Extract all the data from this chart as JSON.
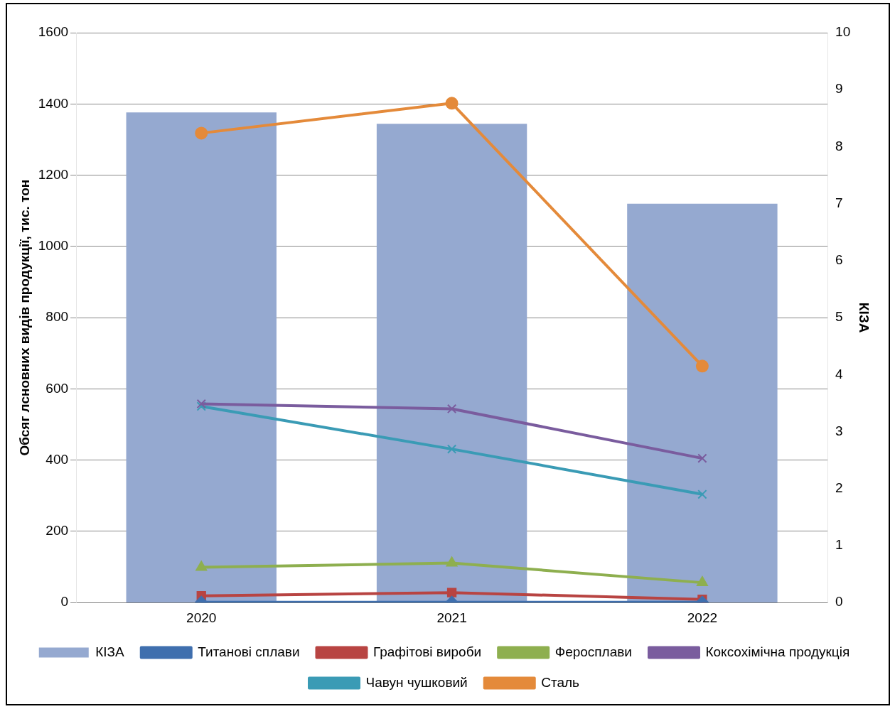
{
  "chart_data": {
    "type": "line",
    "categories": [
      "2020",
      "2021",
      "2022"
    ],
    "ylabel": "Обсяг лсновних видів продукції, тис. тон",
    "y2label": "КІЗА",
    "ylim": [
      0,
      1600
    ],
    "yticks": [
      0,
      200,
      400,
      600,
      800,
      1000,
      1200,
      1400,
      1600
    ],
    "y2lim": [
      0,
      10
    ],
    "y2ticks": [
      0,
      1,
      2,
      3,
      4,
      5,
      6,
      7,
      8,
      9,
      10
    ],
    "grid": "y",
    "legend": "bottom",
    "series": [
      {
        "name": "КІЗА",
        "type": "bar",
        "axis": "y2",
        "color": "#95a9d0",
        "values": [
          8.6,
          8.4,
          7.0
        ]
      },
      {
        "name": "Титанові сплави",
        "marker": "diamond",
        "color": "#3f6fae",
        "values": [
          1,
          1,
          1
        ]
      },
      {
        "name": "Графітові вироби",
        "marker": "square",
        "color": "#b84442",
        "values": [
          19,
          28,
          9
        ]
      },
      {
        "name": "Феросплави",
        "marker": "triangle",
        "color": "#8eaf4f",
        "values": [
          99,
          111,
          56
        ]
      },
      {
        "name": "Коксохімічна продукція",
        "marker": "cross",
        "color": "#7a5c9e",
        "values": [
          558,
          544,
          405
        ]
      },
      {
        "name": "Чавун чушковий",
        "marker": "cross",
        "color": "#3a9bb5",
        "values": [
          551,
          431,
          304
        ]
      },
      {
        "name": "Сталь",
        "marker": "circle",
        "color": "#e48a3a",
        "values": [
          1318,
          1402,
          664
        ]
      }
    ]
  }
}
